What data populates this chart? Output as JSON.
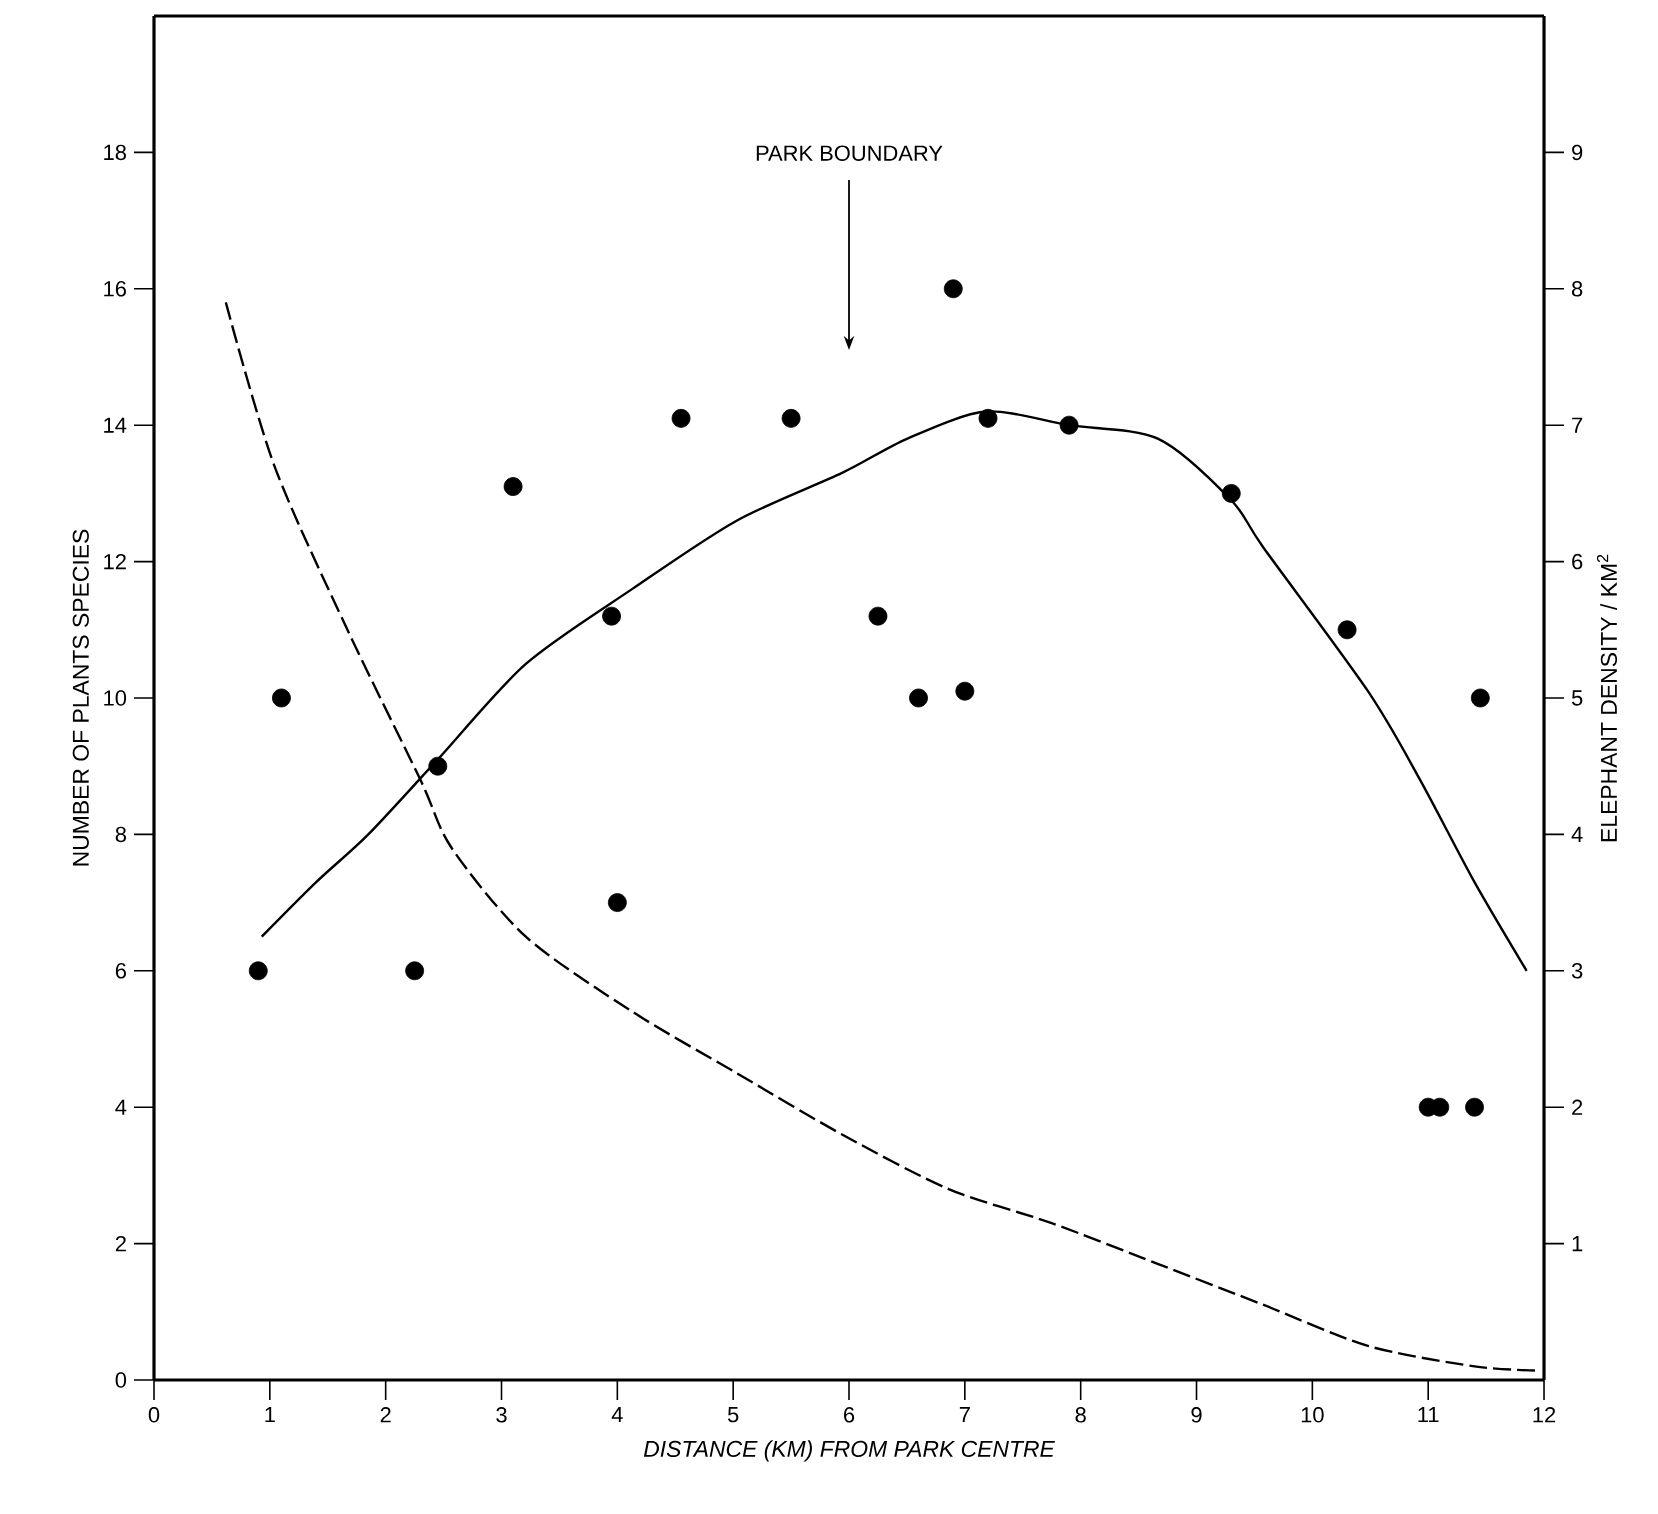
{
  "chart_data": {
    "type": "scatter",
    "xlabel": "DISTANCE (KM) FROM PARK CENTRE",
    "ylabel": "NUMBER OF PLANTS SPECIES",
    "y2label": "ELEPHANT DENSITY / KM$^{2}$",
    "annotations": [
      "PARK BOUNDARY"
    ],
    "xlim": [
      0,
      12
    ],
    "xticks": [
      0,
      1,
      2,
      3,
      4,
      5,
      6,
      7,
      8,
      9,
      10,
      11,
      12
    ],
    "ylim": [
      0,
      20
    ],
    "yticks": [
      0,
      2,
      4,
      6,
      8,
      10,
      12,
      14,
      16,
      18
    ],
    "y2lim": [
      0,
      10
    ],
    "y2ticks": [
      1,
      2,
      3,
      4,
      5,
      6,
      7,
      8,
      9
    ],
    "series": [
      {
        "color": "#000000",
        "marker": "circle",
        "x": [
          0.9,
          1.1,
          2.25,
          2.45,
          3.1,
          3.95,
          4.0,
          4.55,
          5.5,
          6.25,
          6.6,
          6.9,
          7.0,
          7.2,
          7.9,
          9.3,
          10.3,
          11.0,
          11.1,
          11.4,
          11.45
        ],
        "values": [
          6,
          10,
          6,
          9,
          13.1,
          11.2,
          7,
          14.1,
          14.1,
          11.2,
          10,
          16,
          10.1,
          14.1,
          14,
          13,
          11,
          4,
          4,
          4,
          10
        ]
      },
      {
        "type": "line",
        "color": "#000000",
        "line_style": "solid",
        "x": [
          0.93,
          1.4,
          1.85,
          2.45,
          3.21,
          4.13,
          5.03,
          5.94,
          6.5,
          7.18,
          7.9,
          8.67,
          9.3,
          9.58,
          10.48,
          10.93,
          11.4,
          11.85
        ],
        "values": [
          6.5,
          7.3,
          8.0,
          9.1,
          10.5,
          11.6,
          12.6,
          13.3,
          13.8,
          14.2,
          14.0,
          13.8,
          12.9,
          12.2,
          10.1,
          8.8,
          7.3,
          6.0
        ]
      },
      {
        "type": "line",
        "axis": "y2",
        "color": "#000000",
        "line_style": "dashed",
        "x": [
          0.62,
          1.04,
          1.67,
          2.3,
          2.57,
          3.21,
          4.13,
          5.03,
          5.94,
          6.86,
          7.75,
          8.67,
          9.58,
          10.48,
          11.4,
          11.93
        ],
        "values": [
          7.9,
          6.7,
          5.5,
          4.4,
          3.9,
          3.25,
          2.7,
          2.25,
          1.8,
          1.4,
          1.15,
          0.85,
          0.55,
          0.25,
          0.1,
          0.07
        ]
      }
    ]
  }
}
